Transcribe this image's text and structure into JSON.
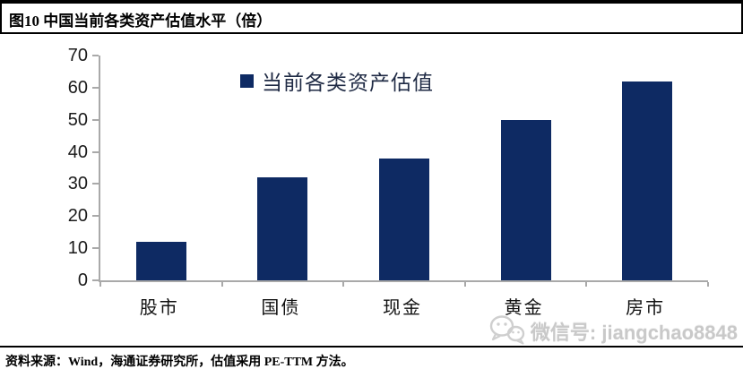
{
  "header": {
    "title": "图10 中国当前各类资产估值水平（倍）"
  },
  "legend": {
    "label": "当前各类资产估值"
  },
  "footer": {
    "source": "资料来源：Wind，海通证券研究所，估值采用 PE-TTM 方法。"
  },
  "watermark": {
    "icon": "wechat-icon",
    "text": "微信号: jiangchao8848"
  },
  "colors": {
    "bar": "#0e2a63",
    "axis": "#a9a9a9",
    "watermark_text": "#c9c9c9"
  },
  "chart_data": {
    "type": "bar",
    "title": "图10 中国当前各类资产估值水平（倍）",
    "categories": [
      "股市",
      "国债",
      "现金",
      "黄金",
      "房市"
    ],
    "values": [
      12,
      32,
      38,
      50,
      62
    ],
    "series": [
      {
        "name": "当前各类资产估值",
        "values": [
          12,
          32,
          38,
          50,
          62
        ]
      }
    ],
    "xlabel": "",
    "ylabel": "",
    "ylim": [
      0,
      70
    ],
    "yticks": [
      0,
      10,
      20,
      30,
      40,
      50,
      60,
      70
    ],
    "grid": false,
    "legend_position": "top-center",
    "bar_color": "#0e2a63"
  }
}
